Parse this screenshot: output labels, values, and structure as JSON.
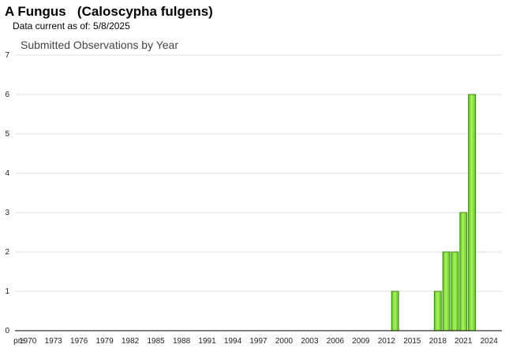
{
  "header": {
    "title": "A Fungus   (Caloscypha fulgens)",
    "data_current": "Data current as of: 5/8/2025"
  },
  "chart_data": {
    "type": "bar",
    "title": "Submitted Observations by Year",
    "xlabel": "",
    "ylabel": "",
    "ylim": [
      0,
      7
    ],
    "yticks": [
      0,
      1,
      2,
      3,
      4,
      5,
      6,
      7
    ],
    "x_tick_labels": [
      "pre",
      "1970",
      "1973",
      "1976",
      "1979",
      "1982",
      "1985",
      "1988",
      "1991",
      "1994",
      "1997",
      "2000",
      "2003",
      "2006",
      "2009",
      "2012",
      "2015",
      "2018",
      "2021",
      "2024"
    ],
    "categories": [
      "pre",
      "1970",
      "1971",
      "1972",
      "1973",
      "1974",
      "1975",
      "1976",
      "1977",
      "1978",
      "1979",
      "1980",
      "1981",
      "1982",
      "1983",
      "1984",
      "1985",
      "1986",
      "1987",
      "1988",
      "1989",
      "1990",
      "1991",
      "1992",
      "1993",
      "1994",
      "1995",
      "1996",
      "1997",
      "1998",
      "1999",
      "2000",
      "2001",
      "2002",
      "2003",
      "2004",
      "2005",
      "2006",
      "2007",
      "2008",
      "2009",
      "2010",
      "2011",
      "2012",
      "2013",
      "2014",
      "2015",
      "2016",
      "2017",
      "2018",
      "2019",
      "2020",
      "2021",
      "2022",
      "2023",
      "2024",
      "2025"
    ],
    "values": [
      0,
      0,
      0,
      0,
      0,
      0,
      0,
      0,
      0,
      0,
      0,
      0,
      0,
      0,
      0,
      0,
      0,
      0,
      0,
      0,
      0,
      0,
      0,
      0,
      0,
      0,
      0,
      0,
      0,
      0,
      0,
      0,
      0,
      0,
      0,
      0,
      0,
      0,
      0,
      0,
      0,
      0,
      0,
      0,
      1,
      0,
      0,
      0,
      0,
      1,
      2,
      2,
      3,
      6,
      0,
      0,
      0
    ],
    "grid": true,
    "colors": {
      "bar_fill": "#88e83a",
      "bar_stroke": "#3c8a10",
      "grid": "#e2e2e2",
      "axis": "#000000"
    }
  }
}
